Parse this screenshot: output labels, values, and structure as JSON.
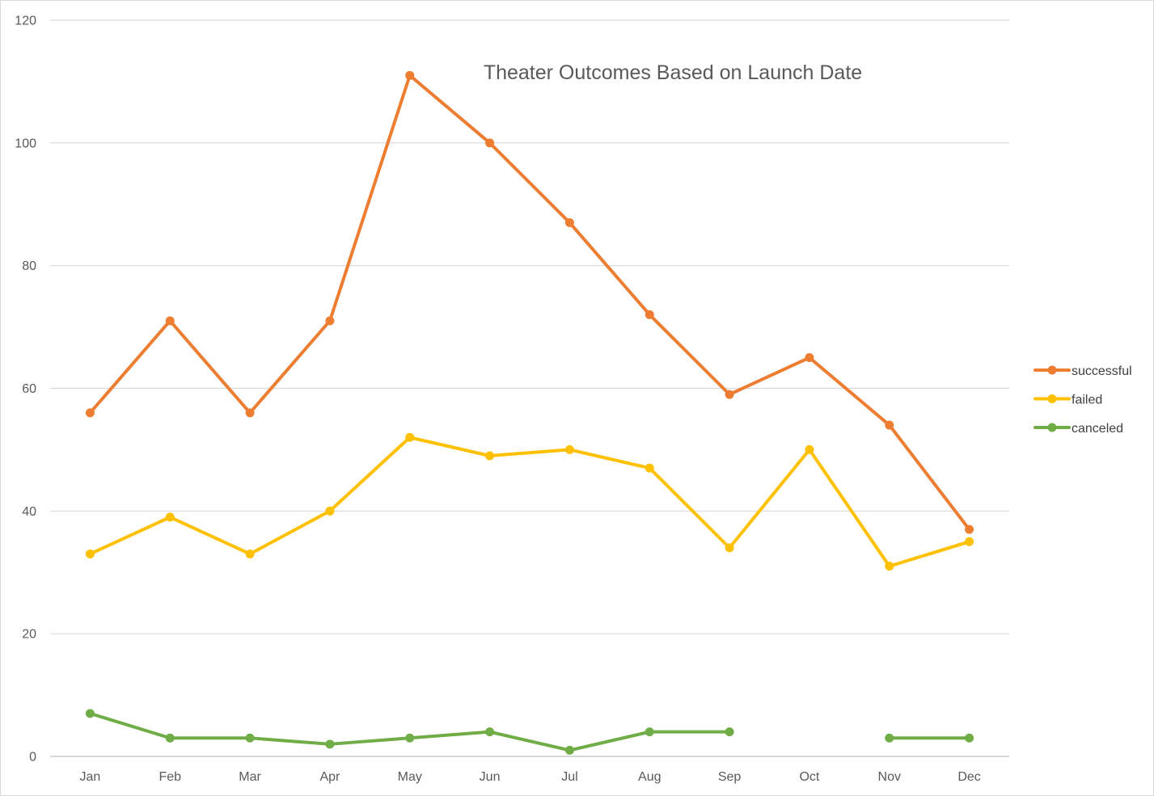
{
  "chart_data": {
    "type": "line",
    "title": "Theater Outcomes Based on Launch Date",
    "xlabel": "",
    "ylabel": "",
    "categories": [
      "Jan",
      "Feb",
      "Mar",
      "Apr",
      "May",
      "Jun",
      "Jul",
      "Aug",
      "Sep",
      "Oct",
      "Nov",
      "Dec"
    ],
    "ylim": [
      0,
      120
    ],
    "yticks": [
      0,
      20,
      40,
      60,
      80,
      100,
      120
    ],
    "grid": true,
    "legend_position": "right",
    "series": [
      {
        "name": "successful",
        "color": "#ED7D31",
        "values": [
          56,
          71,
          56,
          71,
          111,
          100,
          87,
          72,
          59,
          65,
          54,
          37
        ]
      },
      {
        "name": "failed",
        "color": "#FFC000",
        "values": [
          33,
          39,
          33,
          40,
          52,
          49,
          50,
          47,
          34,
          50,
          31,
          35
        ]
      },
      {
        "name": "canceled",
        "color": "#70AD47",
        "values": [
          7,
          3,
          3,
          2,
          3,
          4,
          1,
          4,
          4,
          null,
          3,
          3
        ]
      }
    ]
  }
}
